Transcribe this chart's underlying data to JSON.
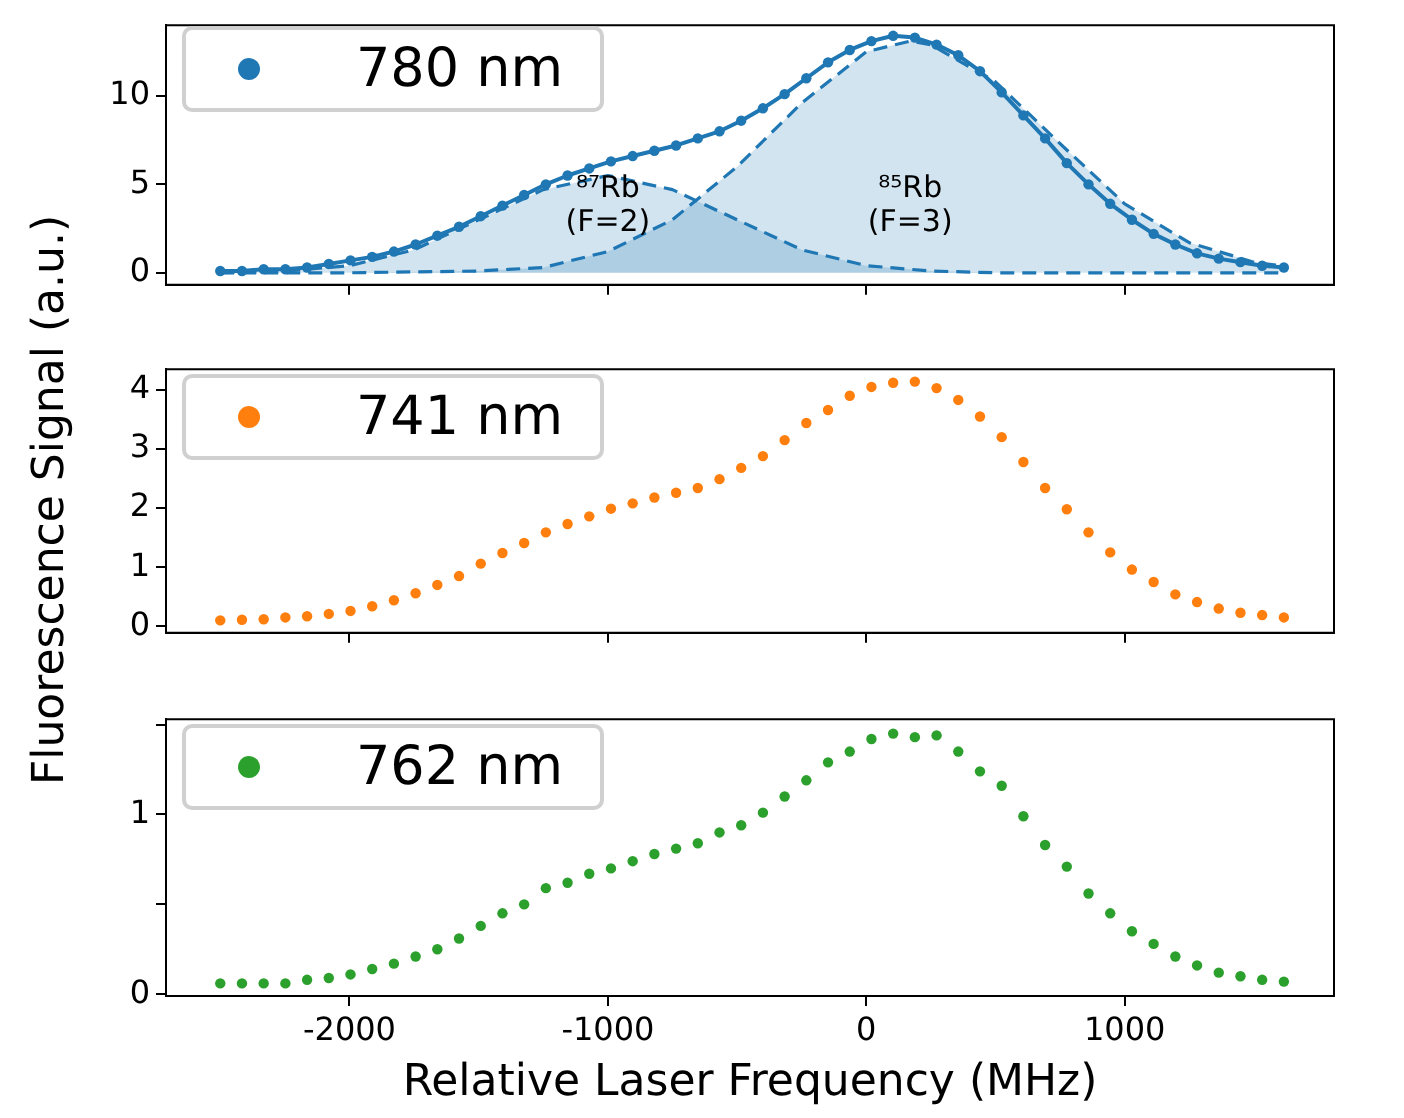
{
  "chart_data": [
    {
      "type": "line",
      "ylim": [
        -0.68,
        14.0
      ],
      "yticks": [
        0,
        5,
        10
      ],
      "xlim": [
        -2710,
        1810
      ],
      "xticks": [
        -2000,
        -1000,
        0,
        1000
      ],
      "tick_labels": "y",
      "grid": false,
      "legend": "top left",
      "x": [
        -2500,
        -2416,
        -2332,
        -2248,
        -2164,
        -2080,
        -1996,
        -1912,
        -1828,
        -1744,
        -1660,
        -1576,
        -1492,
        -1408,
        -1324,
        -1240,
        -1156,
        -1072,
        -988,
        -904,
        -820,
        -736,
        -652,
        -568,
        -484,
        -400,
        -316,
        -232,
        -148,
        -64,
        20,
        104,
        188,
        272,
        356,
        440,
        524,
        608,
        692,
        776,
        860,
        944,
        1028,
        1112,
        1196,
        1280,
        1364,
        1448,
        1532,
        1616
      ],
      "annotations": [
        "⁸⁷Rb (F=2)",
        "⁸⁵Rb (F=3)"
      ],
      "series": [
        {
          "name": "780 nm",
          "marker": "circle",
          "line_style": "solid",
          "color": "#1f77b4",
          "values": [
            0.1,
            0.1,
            0.2,
            0.2,
            0.3,
            0.5,
            0.7,
            0.9,
            1.2,
            1.6,
            2.1,
            2.6,
            3.2,
            3.8,
            4.4,
            5.0,
            5.5,
            5.9,
            6.3,
            6.6,
            6.9,
            7.2,
            7.6,
            8.0,
            8.6,
            9.3,
            10.1,
            11.0,
            11.9,
            12.6,
            13.1,
            13.4,
            13.3,
            12.9,
            12.3,
            11.4,
            10.2,
            8.9,
            7.6,
            6.2,
            5.0,
            3.9,
            3.0,
            2.2,
            1.6,
            1.1,
            0.8,
            0.6,
            0.4,
            0.3
          ]
        },
        {
          "type": "area",
          "marker": "none",
          "line_style": "dashed",
          "color": "#1f77b4",
          "x": [
            -2500,
            -2250,
            -2000,
            -1750,
            -1500,
            -1250,
            -1000,
            -750,
            -500,
            -250,
            0,
            250,
            500,
            750,
            1000,
            1600
          ],
          "values": [
            0,
            0.1,
            0.4,
            1.3,
            3.0,
            4.7,
            5.5,
            4.7,
            3.0,
            1.3,
            0.4,
            0.1,
            0,
            0,
            0,
            0
          ]
        },
        {
          "type": "area",
          "marker": "none",
          "line_style": "dashed",
          "color": "#1f77b4",
          "x": [
            -2500,
            -2000,
            -1500,
            -1250,
            -1000,
            -750,
            -500,
            -250,
            0,
            170,
            250,
            500,
            750,
            1000,
            1250,
            1500,
            1600
          ],
          "values": [
            0,
            0,
            0.1,
            0.3,
            1.2,
            3.0,
            6.0,
            9.6,
            12.5,
            13.1,
            12.9,
            10.8,
            7.3,
            3.9,
            1.7,
            0.6,
            0.4
          ]
        }
      ]
    },
    {
      "type": "scatter",
      "ylim": [
        -0.11,
        4.35
      ],
      "yticks": [
        0,
        1,
        2,
        3,
        4
      ],
      "xlim": [
        -2710,
        1810
      ],
      "xticks": [
        -2000,
        -1000,
        0,
        1000
      ],
      "tick_labels": "y",
      "grid": false,
      "legend": "top left",
      "marker": "circle",
      "ylabel": "Fluorescence Signal (a.u.)",
      "x": [
        -2500,
        -2416,
        -2332,
        -2248,
        -2164,
        -2080,
        -1996,
        -1912,
        -1828,
        -1744,
        -1660,
        -1576,
        -1492,
        -1408,
        -1324,
        -1240,
        -1156,
        -1072,
        -988,
        -904,
        -820,
        -736,
        -652,
        -568,
        -484,
        -400,
        -316,
        -232,
        -148,
        -64,
        20,
        104,
        188,
        272,
        356,
        440,
        524,
        608,
        692,
        776,
        860,
        944,
        1028,
        1112,
        1196,
        1280,
        1364,
        1448,
        1532,
        1616
      ],
      "series": [
        {
          "name": "741 nm",
          "color": "#ff7f0e",
          "values": [
            0.1,
            0.11,
            0.12,
            0.15,
            0.17,
            0.21,
            0.26,
            0.34,
            0.44,
            0.56,
            0.7,
            0.85,
            1.06,
            1.24,
            1.41,
            1.59,
            1.73,
            1.86,
            1.99,
            2.08,
            2.18,
            2.26,
            2.34,
            2.49,
            2.68,
            2.88,
            3.15,
            3.44,
            3.66,
            3.9,
            4.05,
            4.12,
            4.14,
            4.03,
            3.83,
            3.55,
            3.2,
            2.78,
            2.34,
            1.98,
            1.59,
            1.25,
            0.96,
            0.75,
            0.54,
            0.41,
            0.3,
            0.23,
            0.19,
            0.15
          ]
        }
      ]
    },
    {
      "type": "scatter",
      "ylim": [
        -0.01,
        1.53
      ],
      "yticks": [
        0,
        {
          "value": 0.5,
          "label": null
        },
        1,
        {
          "value": 1.5,
          "label": null
        }
      ],
      "xlim": [
        -2710,
        1810
      ],
      "xticks": [
        -2000,
        -1000,
        0,
        1000
      ],
      "grid": false,
      "legend": "top left",
      "marker": "circle",
      "xlabel": "Relative Laser Frequency (MHz)",
      "x": [
        -2500,
        -2416,
        -2332,
        -2248,
        -2164,
        -2080,
        -1996,
        -1912,
        -1828,
        -1744,
        -1660,
        -1576,
        -1492,
        -1408,
        -1324,
        -1240,
        -1156,
        -1072,
        -988,
        -904,
        -820,
        -736,
        -652,
        -568,
        -484,
        -400,
        -316,
        -232,
        -148,
        -64,
        20,
        104,
        188,
        272,
        356,
        440,
        524,
        608,
        692,
        776,
        860,
        944,
        1028,
        1112,
        1196,
        1280,
        1364,
        1448,
        1532,
        1616
      ],
      "series": [
        {
          "name": "762 nm",
          "color": "#2ca02c",
          "values": [
            0.06,
            0.06,
            0.06,
            0.06,
            0.08,
            0.09,
            0.11,
            0.14,
            0.17,
            0.21,
            0.25,
            0.31,
            0.38,
            0.45,
            0.5,
            0.59,
            0.62,
            0.67,
            0.7,
            0.74,
            0.78,
            0.81,
            0.84,
            0.9,
            0.94,
            1.01,
            1.1,
            1.19,
            1.29,
            1.35,
            1.42,
            1.45,
            1.43,
            1.44,
            1.35,
            1.24,
            1.16,
            0.99,
            0.83,
            0.71,
            0.56,
            0.45,
            0.35,
            0.28,
            0.21,
            0.16,
            0.12,
            0.1,
            0.08,
            0.07
          ]
        }
      ]
    }
  ]
}
